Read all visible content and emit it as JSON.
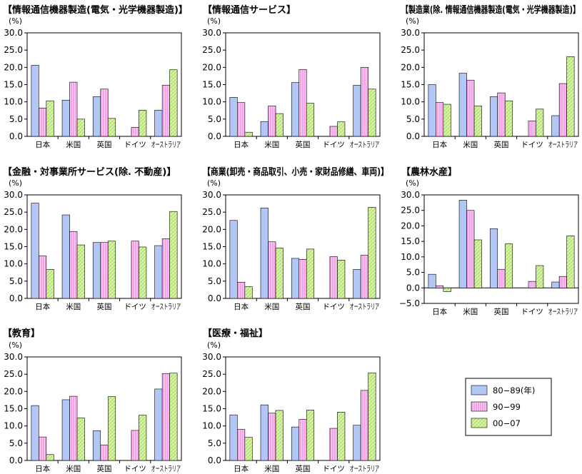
{
  "chart_data": [
    {
      "type": "bar",
      "title": "【情報通信機器製造(電気・光学機器製造)】",
      "ylabel": "(%)",
      "ylim": [
        0,
        30
      ],
      "yticks": [
        "0.0",
        "5.0",
        "10.0",
        "15.0",
        "20.0",
        "25.0",
        "30.0"
      ],
      "categories": [
        "日本",
        "米国",
        "英国",
        "ドイツ",
        "オーストラリア"
      ],
      "series": [
        {
          "name": "80−89(年)",
          "values": [
            20.6,
            10.5,
            11.5,
            null,
            7.6
          ]
        },
        {
          "name": "90−99",
          "values": [
            8.2,
            15.7,
            13.7,
            2.6,
            14.8
          ]
        },
        {
          "name": "00−07",
          "values": [
            10.3,
            5.0,
            5.2,
            7.6,
            19.3
          ]
        }
      ]
    },
    {
      "type": "bar",
      "title": "【情報通信サービス】",
      "ylabel": "(%)",
      "ylim": [
        0,
        30
      ],
      "yticks": [
        "0.0",
        "5.0",
        "10.0",
        "15.0",
        "20.0",
        "25.0",
        "30.0"
      ],
      "categories": [
        "日本",
        "米国",
        "英国",
        "ドイツ",
        "オーストラリア"
      ],
      "series": [
        {
          "name": "80−89(年)",
          "values": [
            11.3,
            4.3,
            15.6,
            null,
            14.8
          ]
        },
        {
          "name": "90−99",
          "values": [
            9.8,
            8.8,
            19.4,
            2.9,
            20.0
          ]
        },
        {
          "name": "00−07",
          "values": [
            1.2,
            6.6,
            9.6,
            4.2,
            13.7
          ]
        }
      ]
    },
    {
      "type": "bar",
      "title": "【製造業(除. 情報通信機器製造(電気・光学機器製造)】",
      "ylabel": "(%)",
      "ylim": [
        0,
        30
      ],
      "yticks": [
        "0.0",
        "5.0",
        "10.0",
        "15.0",
        "20.0",
        "25.0",
        "30.0"
      ],
      "categories": [
        "日本",
        "米国",
        "英国",
        "ドイツ",
        "オーストラリア"
      ],
      "series": [
        {
          "name": "80−89(年)",
          "values": [
            15.0,
            18.3,
            11.5,
            null,
            6.0
          ]
        },
        {
          "name": "90−99",
          "values": [
            9.8,
            16.3,
            12.6,
            4.5,
            15.3
          ]
        },
        {
          "name": "00−07",
          "values": [
            9.3,
            8.8,
            10.3,
            7.9,
            23.1
          ]
        }
      ]
    },
    {
      "type": "bar",
      "title": "【金融・対事業所サービス(除. 不動産)】",
      "ylabel": "(%)",
      "ylim": [
        0,
        30
      ],
      "yticks": [
        "0.0",
        "5.0",
        "10.0",
        "15.0",
        "20.0",
        "25.0",
        "30.0"
      ],
      "categories": [
        "日本",
        "米国",
        "英国",
        "ドイツ",
        "オーストラリア"
      ],
      "series": [
        {
          "name": "80−89(年)",
          "values": [
            27.6,
            24.2,
            16.2,
            null,
            15.3
          ]
        },
        {
          "name": "90−99",
          "values": [
            12.3,
            19.4,
            16.2,
            16.6,
            17.3
          ]
        },
        {
          "name": "00−07",
          "values": [
            8.4,
            15.5,
            16.6,
            14.9,
            25.2
          ]
        }
      ]
    },
    {
      "type": "bar",
      "title": "【商業(卸売・商品取引、小売・家財品修繕、車両)】",
      "ylabel": "(%)",
      "ylim": [
        0,
        30
      ],
      "yticks": [
        "0.0",
        "5.0",
        "10.0",
        "15.0",
        "20.0",
        "25.0",
        "30.0"
      ],
      "categories": [
        "日本",
        "米国",
        "英国",
        "ドイツ",
        "オーストラリア"
      ],
      "series": [
        {
          "name": "80−89(年)",
          "values": [
            22.6,
            26.2,
            11.6,
            null,
            8.4
          ]
        },
        {
          "name": "90−99",
          "values": [
            4.7,
            16.4,
            11.3,
            12.1,
            12.5
          ]
        },
        {
          "name": "00−07",
          "values": [
            3.4,
            14.6,
            14.3,
            11.1,
            26.4
          ]
        }
      ]
    },
    {
      "type": "bar",
      "title": "【農林水産】",
      "ylabel": "(%)",
      "ylim": [
        -5,
        30
      ],
      "yticks": [
        "−5.0",
        "0.0",
        "5.0",
        "10.0",
        "15.0",
        "20.0",
        "25.0",
        "30.0"
      ],
      "categories": [
        "日本",
        "米国",
        "英国",
        "ドイツ",
        "オーストラリア"
      ],
      "series": [
        {
          "name": "80−89(年)",
          "values": [
            4.4,
            28.3,
            19.1,
            null,
            1.9
          ]
        },
        {
          "name": "90−99",
          "values": [
            0.7,
            25.0,
            6.0,
            2.1,
            3.7
          ]
        },
        {
          "name": "00−07",
          "values": [
            -1.2,
            15.5,
            14.2,
            7.2,
            16.8
          ]
        }
      ]
    },
    {
      "type": "bar",
      "title": "【教育】",
      "ylabel": "(%)",
      "ylim": [
        0,
        30
      ],
      "yticks": [
        "0.0",
        "5.0",
        "10.0",
        "15.0",
        "20.0",
        "25.0",
        "30.0"
      ],
      "categories": [
        "日本",
        "米国",
        "英国",
        "ドイツ",
        "オーストラリア"
      ],
      "series": [
        {
          "name": "80−89(年)",
          "values": [
            15.9,
            17.6,
            8.6,
            null,
            20.7
          ]
        },
        {
          "name": "90−99",
          "values": [
            6.8,
            18.6,
            4.5,
            8.7,
            25.2
          ]
        },
        {
          "name": "00−07",
          "values": [
            1.7,
            12.3,
            18.5,
            13.1,
            25.3
          ]
        }
      ]
    },
    {
      "type": "bar",
      "title": "【医療・福祉】",
      "ylabel": "(%)",
      "ylim": [
        0,
        30
      ],
      "yticks": [
        "0.0",
        "5.0",
        "10.0",
        "15.0",
        "20.0",
        "25.0",
        "30.0"
      ],
      "categories": [
        "日本",
        "米国",
        "英国",
        "ドイツ",
        "オーストラリア"
      ],
      "series": [
        {
          "name": "80−89(年)",
          "values": [
            13.2,
            16.1,
            9.7,
            null,
            10.2
          ]
        },
        {
          "name": "90−99",
          "values": [
            9.0,
            13.7,
            11.9,
            9.3,
            20.3
          ]
        },
        {
          "name": "00−07",
          "values": [
            6.7,
            14.5,
            14.6,
            14.0,
            25.4
          ]
        }
      ]
    }
  ],
  "legend": {
    "placement": "bottom-right",
    "items": [
      {
        "label": "80−89(年)",
        "color": "#b3c7f7"
      },
      {
        "label": "90−99",
        "color": "#f9a0e8"
      },
      {
        "label": "00−07",
        "color": "#b5e56c"
      }
    ]
  },
  "colors": {
    "series_1": "#b3c7f7",
    "series_2": "#f9a0e8",
    "series_2_stripe": "#ffffff",
    "series_3": "#b5e56c",
    "series_3_hatch": "#ffffff",
    "axis": "#000000"
  }
}
